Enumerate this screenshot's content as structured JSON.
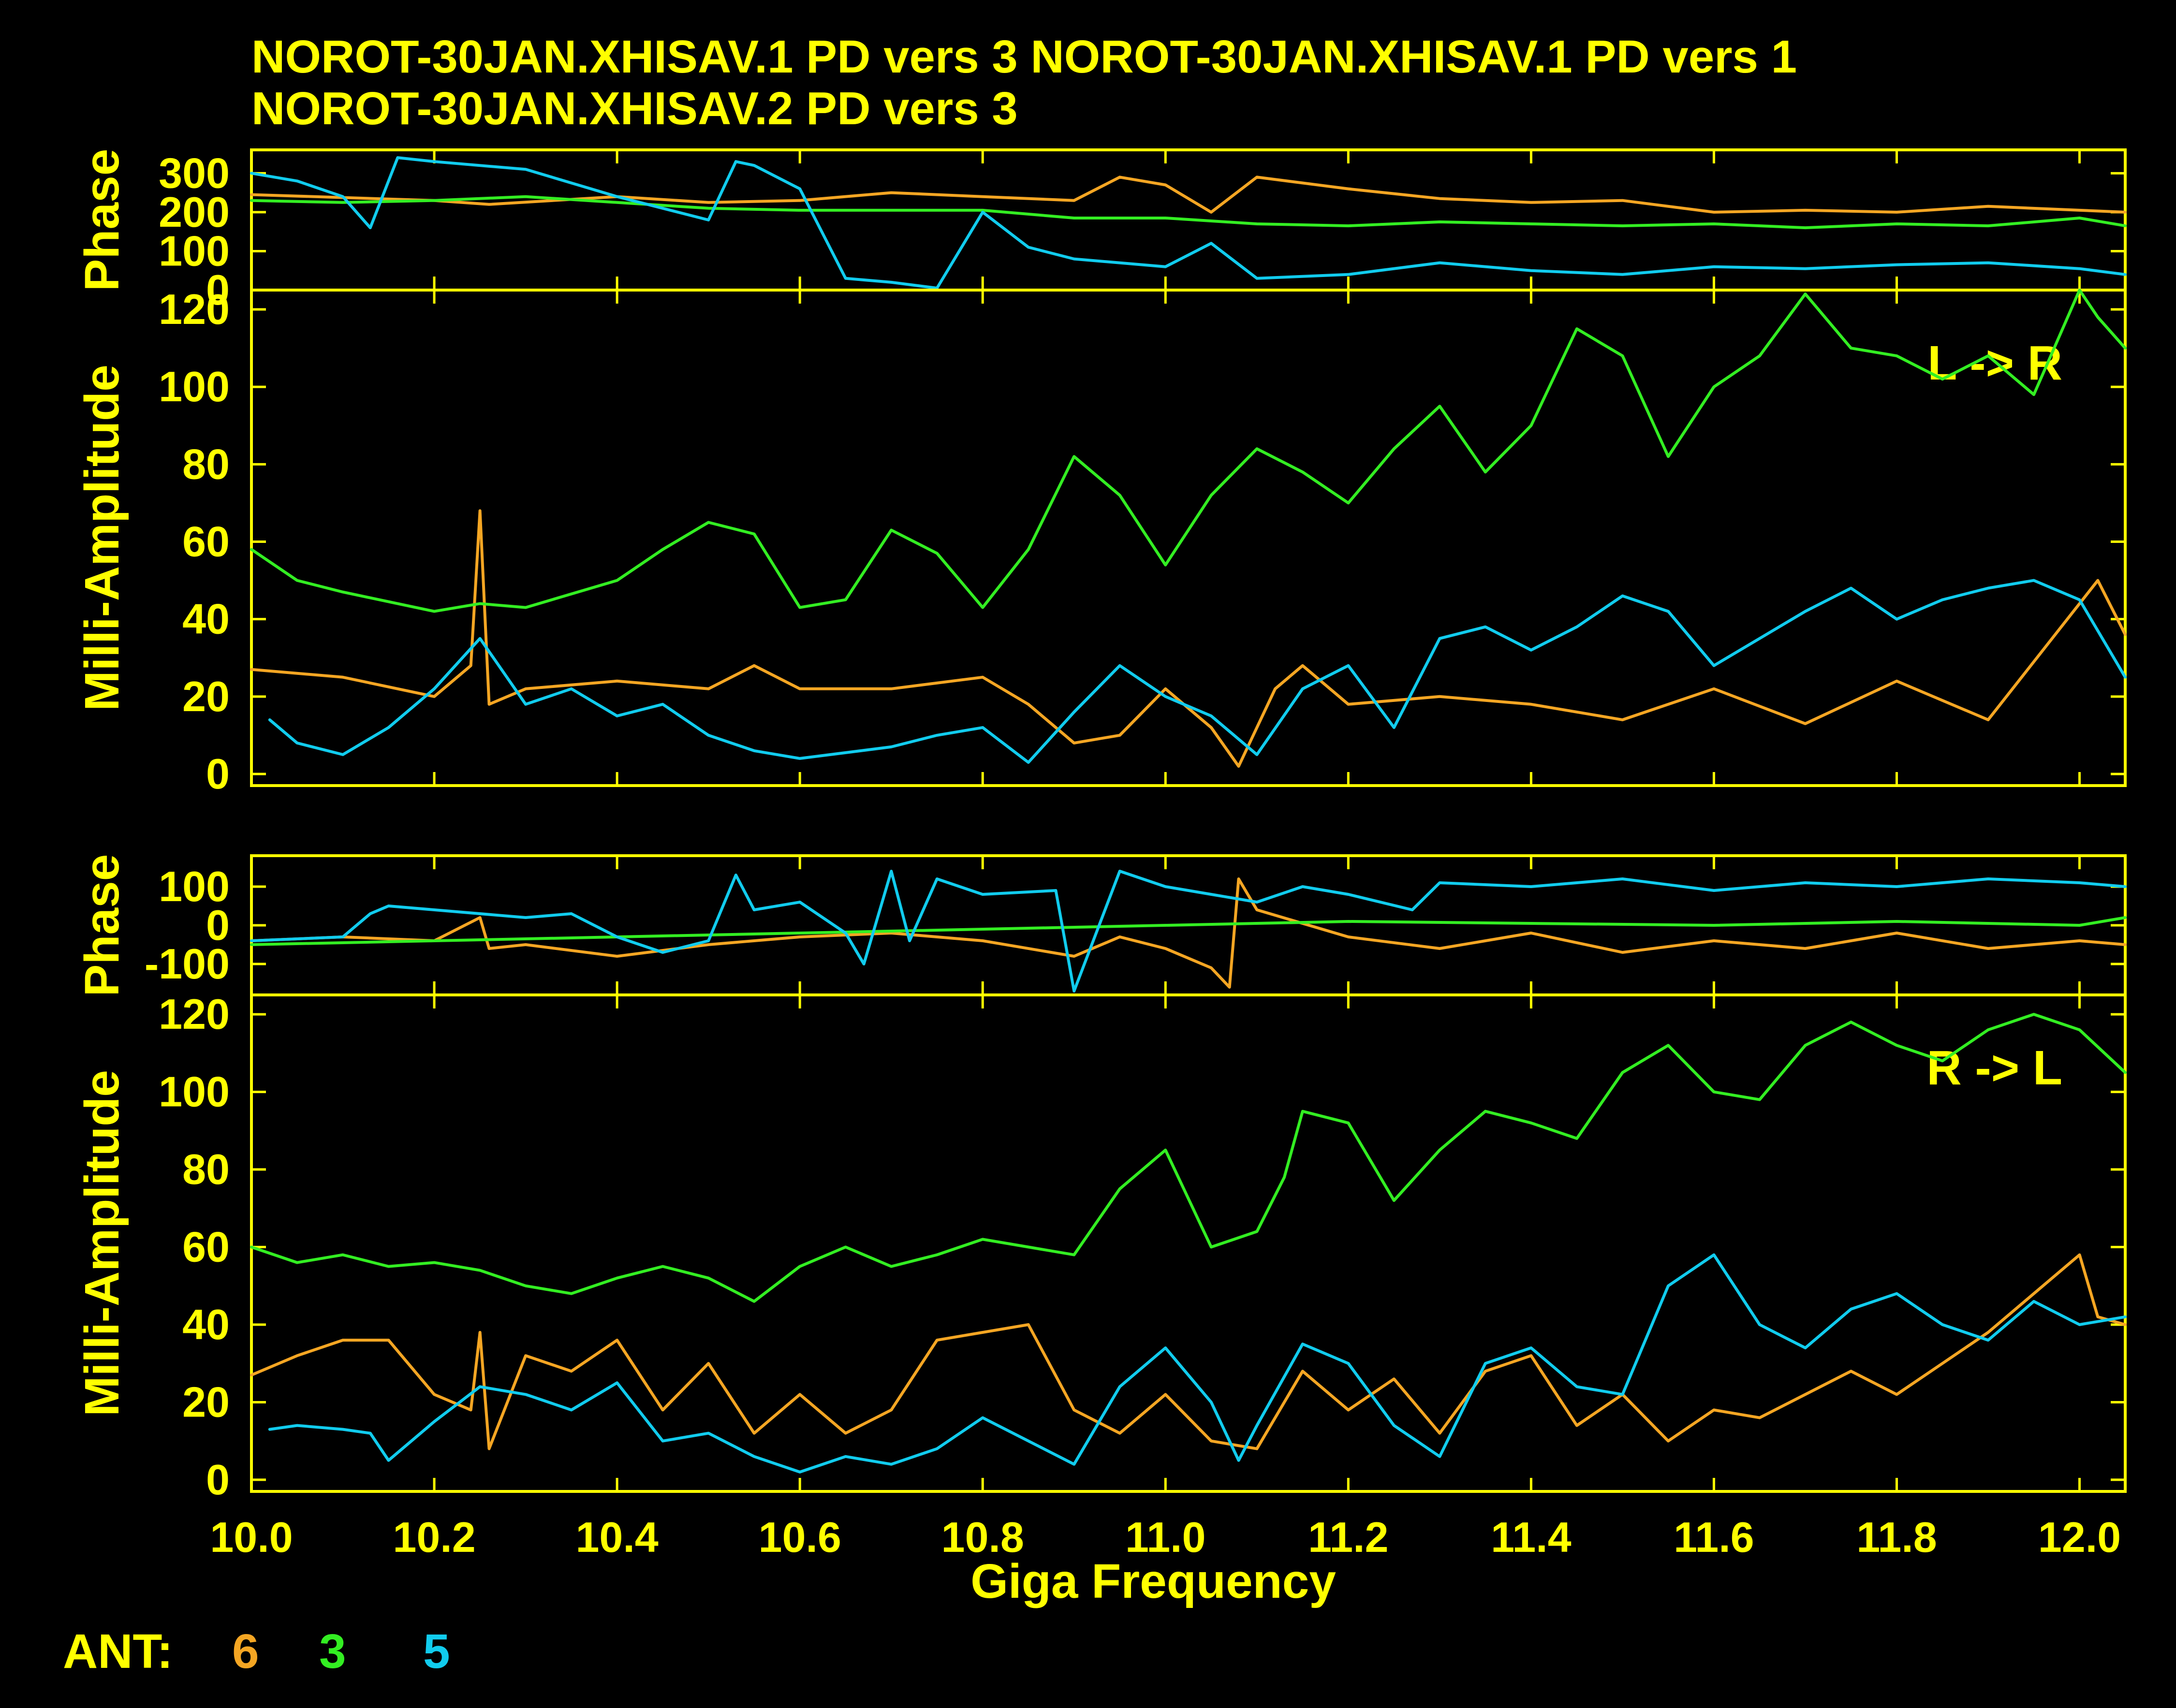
{
  "titles": [
    "NOROT-30JAN.XHISAV.1  PD vers 3   NOROT-30JAN.XHISAV.1  PD vers 1",
    "NOROT-30JAN.XHISAV.2  PD vers 3"
  ],
  "xlabel": "Giga  Frequency",
  "legend": {
    "label": "ANT:",
    "items": [
      {
        "name": "6",
        "color": "#f5a623"
      },
      {
        "name": "3",
        "color": "#33ee22"
      },
      {
        "name": "5",
        "color": "#11ccee"
      }
    ]
  },
  "colors": {
    "axes": "#ffff00",
    "background": "#000000"
  },
  "chart_data": [
    {
      "type": "line",
      "panel": "top-phase",
      "ylabel": "Phase",
      "xlim": [
        10.0,
        12.05
      ],
      "ylim": [
        0,
        360
      ],
      "yticks": [
        "300",
        "200",
        "100",
        "0"
      ],
      "series": [
        {
          "name": "6",
          "color": "#f5a623",
          "x": [
            10.0,
            10.2,
            10.26,
            10.4,
            10.5,
            10.6,
            10.7,
            10.8,
            10.9,
            10.95,
            11.0,
            11.05,
            11.1,
            11.2,
            11.3,
            11.4,
            11.5,
            11.6,
            11.7,
            11.8,
            11.9,
            12.0,
            12.05
          ],
          "y": [
            245,
            230,
            220,
            240,
            225,
            230,
            250,
            240,
            230,
            290,
            270,
            200,
            290,
            260,
            235,
            225,
            230,
            200,
            205,
            200,
            215,
            205,
            200
          ]
        },
        {
          "name": "3",
          "color": "#33ee22",
          "x": [
            10.0,
            10.1,
            10.2,
            10.3,
            10.4,
            10.5,
            10.6,
            10.7,
            10.8,
            10.9,
            11.0,
            11.1,
            11.2,
            11.3,
            11.4,
            11.5,
            11.6,
            11.7,
            11.8,
            11.9,
            12.0,
            12.05
          ],
          "y": [
            230,
            225,
            230,
            240,
            225,
            210,
            205,
            205,
            205,
            185,
            185,
            170,
            165,
            175,
            170,
            165,
            170,
            160,
            170,
            165,
            185,
            165
          ]
        },
        {
          "name": "5",
          "color": "#11ccee",
          "x": [
            10.0,
            10.05,
            10.1,
            10.13,
            10.16,
            10.2,
            10.3,
            10.4,
            10.5,
            10.53,
            10.55,
            10.6,
            10.65,
            10.7,
            10.75,
            10.8,
            10.85,
            10.9,
            11.0,
            11.05,
            11.1,
            11.2,
            11.3,
            11.4,
            11.5,
            11.6,
            11.7,
            11.8,
            11.9,
            12.0,
            12.05
          ],
          "y": [
            300,
            280,
            240,
            160,
            340,
            330,
            310,
            240,
            180,
            330,
            320,
            260,
            30,
            20,
            5,
            200,
            110,
            80,
            60,
            120,
            30,
            40,
            70,
            50,
            40,
            60,
            55,
            65,
            70,
            55,
            40
          ]
        }
      ]
    },
    {
      "type": "line",
      "panel": "top-amplitude",
      "ylabel": "Milli-Amplitude",
      "annotation": "L -> R",
      "xlim": [
        10.0,
        12.05
      ],
      "ylim": [
        -3,
        125
      ],
      "yticks": [
        "120",
        "100",
        "80",
        "60",
        "40",
        "20",
        "0"
      ],
      "series": [
        {
          "name": "6",
          "color": "#f5a623",
          "x": [
            10.0,
            10.1,
            10.2,
            10.24,
            10.25,
            10.26,
            10.3,
            10.4,
            10.5,
            10.55,
            10.6,
            10.7,
            10.8,
            10.85,
            10.9,
            10.95,
            11.0,
            11.05,
            11.08,
            11.12,
            11.15,
            11.2,
            11.3,
            11.4,
            11.5,
            11.6,
            11.7,
            11.8,
            11.9,
            12.0,
            12.02,
            12.05
          ],
          "y": [
            27,
            25,
            20,
            28,
            68,
            18,
            22,
            24,
            22,
            28,
            22,
            22,
            25,
            18,
            8,
            10,
            22,
            12,
            2,
            22,
            28,
            18,
            20,
            18,
            14,
            22,
            13,
            24,
            14,
            44,
            50,
            36
          ]
        },
        {
          "name": "3",
          "color": "#33ee22",
          "x": [
            10.0,
            10.05,
            10.1,
            10.2,
            10.25,
            10.3,
            10.4,
            10.45,
            10.5,
            10.55,
            10.6,
            10.65,
            10.7,
            10.75,
            10.8,
            10.85,
            10.9,
            10.95,
            11.0,
            11.05,
            11.1,
            11.15,
            11.2,
            11.25,
            11.3,
            11.35,
            11.4,
            11.45,
            11.5,
            11.55,
            11.6,
            11.65,
            11.7,
            11.75,
            11.8,
            11.85,
            11.9,
            11.95,
            12.0,
            12.02,
            12.05
          ],
          "y": [
            58,
            50,
            47,
            42,
            44,
            43,
            50,
            58,
            65,
            62,
            43,
            45,
            63,
            57,
            43,
            58,
            82,
            72,
            54,
            72,
            84,
            78,
            70,
            84,
            95,
            78,
            90,
            115,
            108,
            82,
            100,
            108,
            124,
            110,
            108,
            102,
            108,
            98,
            125,
            118,
            110
          ]
        },
        {
          "name": "5",
          "color": "#11ccee",
          "x": [
            10.02,
            10.05,
            10.1,
            10.15,
            10.2,
            10.25,
            10.3,
            10.35,
            10.4,
            10.45,
            10.5,
            10.55,
            10.6,
            10.7,
            10.75,
            10.8,
            10.85,
            10.9,
            10.95,
            11.0,
            11.05,
            11.1,
            11.15,
            11.2,
            11.25,
            11.3,
            11.35,
            11.4,
            11.45,
            11.5,
            11.55,
            11.6,
            11.65,
            11.7,
            11.75,
            11.8,
            11.85,
            11.9,
            11.95,
            12.0,
            12.05
          ],
          "y": [
            14,
            8,
            5,
            12,
            22,
            35,
            18,
            22,
            15,
            18,
            10,
            6,
            4,
            7,
            10,
            12,
            3,
            16,
            28,
            20,
            15,
            5,
            22,
            28,
            12,
            35,
            38,
            32,
            38,
            46,
            42,
            28,
            35,
            42,
            48,
            40,
            45,
            48,
            50,
            45,
            25
          ]
        }
      ]
    },
    {
      "type": "line",
      "panel": "bottom-phase",
      "ylabel": "Phase",
      "xlim": [
        10.0,
        12.05
      ],
      "ylim": [
        -180,
        180
      ],
      "yticks": [
        "100",
        "0",
        "-100"
      ],
      "series": [
        {
          "name": "6",
          "color": "#f5a623",
          "x": [
            10.0,
            10.1,
            10.2,
            10.25,
            10.26,
            10.3,
            10.4,
            10.5,
            10.6,
            10.7,
            10.8,
            10.9,
            10.95,
            11.0,
            11.05,
            11.07,
            11.08,
            11.1,
            11.2,
            11.3,
            11.4,
            11.5,
            11.6,
            11.7,
            11.8,
            11.9,
            12.0,
            12.05
          ],
          "y": [
            -40,
            -30,
            -40,
            20,
            -60,
            -50,
            -80,
            -50,
            -30,
            -20,
            -40,
            -80,
            -30,
            -60,
            -110,
            -160,
            120,
            40,
            -30,
            -60,
            -20,
            -70,
            -40,
            -60,
            -20,
            -60,
            -40,
            -50
          ]
        },
        {
          "name": "3",
          "color": "#33ee22",
          "x": [
            10.0,
            10.2,
            10.4,
            10.6,
            10.8,
            11.0,
            11.2,
            11.4,
            11.6,
            11.8,
            12.0,
            12.05
          ],
          "y": [
            -50,
            -40,
            -30,
            -20,
            -10,
            0,
            10,
            5,
            0,
            10,
            0,
            20
          ]
        },
        {
          "name": "5",
          "color": "#11ccee",
          "x": [
            10.0,
            10.1,
            10.13,
            10.15,
            10.2,
            10.3,
            10.35,
            10.4,
            10.45,
            10.5,
            10.53,
            10.55,
            10.6,
            10.65,
            10.67,
            10.7,
            10.72,
            10.75,
            10.8,
            10.88,
            10.9,
            10.95,
            11.0,
            11.05,
            11.1,
            11.15,
            11.2,
            11.27,
            11.3,
            11.4,
            11.5,
            11.6,
            11.7,
            11.8,
            11.9,
            12.0,
            12.05
          ],
          "y": [
            -40,
            -30,
            30,
            50,
            40,
            20,
            30,
            -30,
            -70,
            -40,
            130,
            40,
            60,
            -20,
            -100,
            140,
            -40,
            120,
            80,
            90,
            -170,
            140,
            100,
            80,
            60,
            100,
            80,
            40,
            110,
            100,
            120,
            90,
            110,
            100,
            120,
            110,
            100
          ]
        }
      ]
    },
    {
      "type": "line",
      "panel": "bottom-amplitude",
      "ylabel": "Milli-Amplitude",
      "annotation": "R -> L",
      "xlim": [
        10.0,
        12.05
      ],
      "ylim": [
        -3,
        125
      ],
      "yticks": [
        "120",
        "100",
        "80",
        "60",
        "40",
        "20",
        "0"
      ],
      "series": [
        {
          "name": "6",
          "color": "#f5a623",
          "x": [
            10.0,
            10.05,
            10.1,
            10.15,
            10.2,
            10.24,
            10.25,
            10.26,
            10.3,
            10.35,
            10.4,
            10.45,
            10.5,
            10.55,
            10.6,
            10.65,
            10.7,
            10.75,
            10.8,
            10.85,
            10.9,
            10.95,
            11.0,
            11.05,
            11.1,
            11.15,
            11.2,
            11.25,
            11.3,
            11.35,
            11.4,
            11.45,
            11.5,
            11.55,
            11.6,
            11.65,
            11.7,
            11.75,
            11.8,
            11.85,
            11.9,
            11.95,
            12.0,
            12.02,
            12.05
          ],
          "y": [
            27,
            32,
            36,
            36,
            22,
            18,
            38,
            8,
            32,
            28,
            36,
            18,
            30,
            12,
            22,
            12,
            18,
            36,
            38,
            40,
            18,
            12,
            22,
            10,
            8,
            28,
            18,
            26,
            12,
            28,
            32,
            14,
            22,
            10,
            18,
            16,
            22,
            28,
            22,
            30,
            38,
            48,
            58,
            42,
            40
          ]
        },
        {
          "name": "3",
          "color": "#33ee22",
          "x": [
            10.0,
            10.05,
            10.1,
            10.15,
            10.2,
            10.25,
            10.3,
            10.35,
            10.4,
            10.45,
            10.5,
            10.55,
            10.6,
            10.65,
            10.7,
            10.75,
            10.8,
            10.85,
            10.9,
            10.95,
            11.0,
            11.05,
            11.1,
            11.13,
            11.15,
            11.2,
            11.25,
            11.3,
            11.35,
            11.4,
            11.45,
            11.5,
            11.55,
            11.6,
            11.65,
            11.7,
            11.75,
            11.8,
            11.85,
            11.9,
            11.95,
            12.0,
            12.05
          ],
          "y": [
            60,
            56,
            58,
            55,
            56,
            54,
            50,
            48,
            52,
            55,
            52,
            46,
            55,
            60,
            55,
            58,
            62,
            60,
            58,
            75,
            85,
            60,
            64,
            78,
            95,
            92,
            72,
            85,
            95,
            92,
            88,
            105,
            112,
            100,
            98,
            112,
            118,
            112,
            108,
            116,
            120,
            116,
            105
          ]
        },
        {
          "name": "5",
          "color": "#11ccee",
          "x": [
            10.02,
            10.05,
            10.1,
            10.13,
            10.15,
            10.2,
            10.25,
            10.3,
            10.35,
            10.4,
            10.45,
            10.5,
            10.55,
            10.6,
            10.65,
            10.7,
            10.75,
            10.8,
            10.85,
            10.9,
            10.95,
            11.0,
            11.05,
            11.08,
            11.1,
            11.15,
            11.2,
            11.25,
            11.3,
            11.35,
            11.4,
            11.45,
            11.5,
            11.55,
            11.6,
            11.65,
            11.7,
            11.75,
            11.8,
            11.85,
            11.9,
            11.95,
            12.0,
            12.05
          ],
          "y": [
            13,
            14,
            13,
            12,
            5,
            15,
            24,
            22,
            18,
            25,
            10,
            12,
            6,
            2,
            6,
            4,
            8,
            16,
            10,
            4,
            24,
            34,
            20,
            5,
            14,
            35,
            30,
            14,
            6,
            30,
            34,
            24,
            22,
            50,
            58,
            40,
            34,
            44,
            48,
            40,
            36,
            46,
            40,
            42
          ]
        }
      ]
    }
  ]
}
